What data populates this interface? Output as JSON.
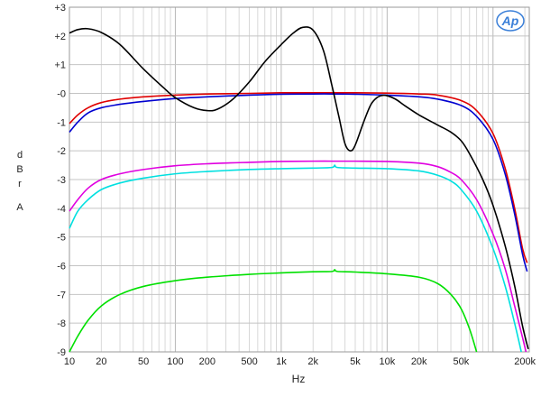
{
  "chart_data": {
    "type": "line",
    "title": "",
    "xlabel": "Hz",
    "ylabel_lines": [
      "d",
      "B",
      "r",
      "",
      "A"
    ],
    "x_scale": "log",
    "xlim": [
      10,
      220000
    ],
    "ylim": [
      -9,
      3
    ],
    "grid": true,
    "logo_text": "Ap",
    "x_ticks": [
      {
        "v": 10,
        "label": "10"
      },
      {
        "v": 20,
        "label": "20"
      },
      {
        "v": 50,
        "label": "50"
      },
      {
        "v": 100,
        "label": "100"
      },
      {
        "v": 200,
        "label": "200"
      },
      {
        "v": 500,
        "label": "500"
      },
      {
        "v": 1000,
        "label": "1k"
      },
      {
        "v": 2000,
        "label": "2k"
      },
      {
        "v": 5000,
        "label": "5k"
      },
      {
        "v": 10000,
        "label": "10k"
      },
      {
        "v": 20000,
        "label": "20k"
      },
      {
        "v": 50000,
        "label": "50k"
      },
      {
        "v": 200000,
        "label": "200k"
      }
    ],
    "y_ticks": [
      {
        "v": 3,
        "label": "+3"
      },
      {
        "v": 2,
        "label": "+2"
      },
      {
        "v": 1,
        "label": "+1"
      },
      {
        "v": 0,
        "label": "-0"
      },
      {
        "v": -1,
        "label": "-1"
      },
      {
        "v": -2,
        "label": "-2"
      },
      {
        "v": -3,
        "label": "-3"
      },
      {
        "v": -4,
        "label": "-4"
      },
      {
        "v": -5,
        "label": "-5"
      },
      {
        "v": -6,
        "label": "-6"
      },
      {
        "v": -7,
        "label": "-7"
      },
      {
        "v": -8,
        "label": "-8"
      },
      {
        "v": -9,
        "label": "-9"
      }
    ],
    "series": [
      {
        "key": "red",
        "color": "#e00000",
        "points": [
          [
            10,
            -1.05
          ],
          [
            12,
            -0.75
          ],
          [
            15,
            -0.5
          ],
          [
            20,
            -0.32
          ],
          [
            30,
            -0.2
          ],
          [
            50,
            -0.12
          ],
          [
            100,
            -0.06
          ],
          [
            200,
            -0.02
          ],
          [
            500,
            0.0
          ],
          [
            1000,
            0.02
          ],
          [
            2000,
            0.02
          ],
          [
            3000,
            0.02
          ],
          [
            5000,
            0.02
          ],
          [
            10000,
            0.01
          ],
          [
            20000,
            -0.02
          ],
          [
            30000,
            -0.06
          ],
          [
            50000,
            -0.25
          ],
          [
            70000,
            -0.6
          ],
          [
            100000,
            -1.4
          ],
          [
            130000,
            -2.6
          ],
          [
            160000,
            -4.0
          ],
          [
            190000,
            -5.4
          ],
          [
            210000,
            -5.9
          ]
        ]
      },
      {
        "key": "blue",
        "color": "#0000d0",
        "points": [
          [
            10,
            -1.35
          ],
          [
            12,
            -1.0
          ],
          [
            15,
            -0.68
          ],
          [
            20,
            -0.5
          ],
          [
            30,
            -0.38
          ],
          [
            50,
            -0.28
          ],
          [
            100,
            -0.18
          ],
          [
            200,
            -0.12
          ],
          [
            500,
            -0.06
          ],
          [
            1000,
            -0.03
          ],
          [
            2000,
            -0.02
          ],
          [
            3000,
            -0.02
          ],
          [
            5000,
            -0.03
          ],
          [
            10000,
            -0.06
          ],
          [
            20000,
            -0.12
          ],
          [
            30000,
            -0.2
          ],
          [
            50000,
            -0.42
          ],
          [
            70000,
            -0.8
          ],
          [
            100000,
            -1.6
          ],
          [
            130000,
            -2.8
          ],
          [
            160000,
            -4.2
          ],
          [
            190000,
            -5.6
          ],
          [
            210000,
            -6.2
          ]
        ]
      },
      {
        "key": "black",
        "color": "#000000",
        "points": [
          [
            10,
            2.1
          ],
          [
            12,
            2.22
          ],
          [
            15,
            2.25
          ],
          [
            20,
            2.12
          ],
          [
            30,
            1.7
          ],
          [
            50,
            0.85
          ],
          [
            80,
            0.15
          ],
          [
            100,
            -0.15
          ],
          [
            150,
            -0.5
          ],
          [
            200,
            -0.6
          ],
          [
            250,
            -0.55
          ],
          [
            350,
            -0.2
          ],
          [
            500,
            0.4
          ],
          [
            700,
            1.1
          ],
          [
            1000,
            1.7
          ],
          [
            1300,
            2.1
          ],
          [
            1600,
            2.3
          ],
          [
            2000,
            2.2
          ],
          [
            2500,
            1.5
          ],
          [
            3000,
            0.3
          ],
          [
            3500,
            -0.8
          ],
          [
            4000,
            -1.75
          ],
          [
            4500,
            -2.0
          ],
          [
            5000,
            -1.8
          ],
          [
            6000,
            -1.0
          ],
          [
            7000,
            -0.4
          ],
          [
            8000,
            -0.15
          ],
          [
            9000,
            -0.07
          ],
          [
            10000,
            -0.08
          ],
          [
            12000,
            -0.2
          ],
          [
            15000,
            -0.45
          ],
          [
            20000,
            -0.75
          ],
          [
            30000,
            -1.1
          ],
          [
            40000,
            -1.35
          ],
          [
            50000,
            -1.65
          ],
          [
            60000,
            -2.1
          ],
          [
            80000,
            -3.0
          ],
          [
            100000,
            -3.9
          ],
          [
            130000,
            -5.3
          ],
          [
            160000,
            -6.7
          ],
          [
            190000,
            -8.1
          ],
          [
            215000,
            -8.9
          ]
        ]
      },
      {
        "key": "magenta",
        "color": "#e000e0",
        "points": [
          [
            10,
            -4.1
          ],
          [
            12,
            -3.7
          ],
          [
            15,
            -3.3
          ],
          [
            20,
            -3.0
          ],
          [
            30,
            -2.8
          ],
          [
            50,
            -2.65
          ],
          [
            100,
            -2.52
          ],
          [
            200,
            -2.45
          ],
          [
            500,
            -2.4
          ],
          [
            1000,
            -2.37
          ],
          [
            2000,
            -2.36
          ],
          [
            3000,
            -2.36
          ],
          [
            5000,
            -2.36
          ],
          [
            10000,
            -2.37
          ],
          [
            20000,
            -2.43
          ],
          [
            30000,
            -2.55
          ],
          [
            40000,
            -2.75
          ],
          [
            50000,
            -3.0
          ],
          [
            70000,
            -3.7
          ],
          [
            100000,
            -4.9
          ],
          [
            130000,
            -6.1
          ],
          [
            160000,
            -7.4
          ],
          [
            190000,
            -8.5
          ],
          [
            205000,
            -9.0
          ]
        ]
      },
      {
        "key": "cyan",
        "color": "#00e0e0",
        "points": [
          [
            10,
            -4.7
          ],
          [
            12,
            -4.1
          ],
          [
            15,
            -3.7
          ],
          [
            20,
            -3.35
          ],
          [
            30,
            -3.12
          ],
          [
            50,
            -2.95
          ],
          [
            100,
            -2.8
          ],
          [
            200,
            -2.72
          ],
          [
            500,
            -2.65
          ],
          [
            1000,
            -2.62
          ],
          [
            2000,
            -2.6
          ],
          [
            3000,
            -2.58
          ],
          [
            3200,
            -2.5
          ],
          [
            3400,
            -2.58
          ],
          [
            5000,
            -2.6
          ],
          [
            10000,
            -2.62
          ],
          [
            20000,
            -2.7
          ],
          [
            30000,
            -2.85
          ],
          [
            40000,
            -3.05
          ],
          [
            50000,
            -3.35
          ],
          [
            70000,
            -4.1
          ],
          [
            100000,
            -5.4
          ],
          [
            130000,
            -6.7
          ],
          [
            160000,
            -8.0
          ],
          [
            185000,
            -9.0
          ]
        ]
      },
      {
        "key": "green",
        "color": "#00e000",
        "points": [
          [
            10,
            -9.0
          ],
          [
            12,
            -8.45
          ],
          [
            15,
            -7.9
          ],
          [
            20,
            -7.4
          ],
          [
            30,
            -7.0
          ],
          [
            50,
            -6.72
          ],
          [
            100,
            -6.52
          ],
          [
            200,
            -6.4
          ],
          [
            500,
            -6.3
          ],
          [
            1000,
            -6.25
          ],
          [
            2000,
            -6.21
          ],
          [
            3000,
            -6.2
          ],
          [
            3200,
            -6.14
          ],
          [
            3400,
            -6.2
          ],
          [
            5000,
            -6.22
          ],
          [
            10000,
            -6.28
          ],
          [
            20000,
            -6.4
          ],
          [
            30000,
            -6.62
          ],
          [
            40000,
            -7.0
          ],
          [
            50000,
            -7.5
          ],
          [
            60000,
            -8.2
          ],
          [
            70000,
            -9.0
          ]
        ]
      }
    ]
  }
}
